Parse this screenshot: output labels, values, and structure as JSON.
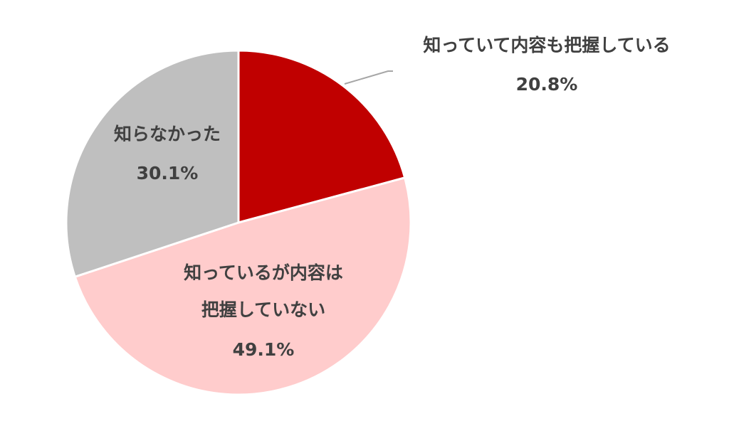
{
  "chart_data": {
    "type": "pie",
    "categories": [
      "知っていて内容も把握している",
      "知っているが内容は\n把握していない",
      "知らなかった"
    ],
    "values": [
      20.8,
      49.1,
      30.1
    ],
    "value_labels": [
      "20.8%",
      "49.1%",
      "30.1%"
    ],
    "colors": [
      "#c00000",
      "#ffcccc",
      "#bfbfbf"
    ]
  }
}
